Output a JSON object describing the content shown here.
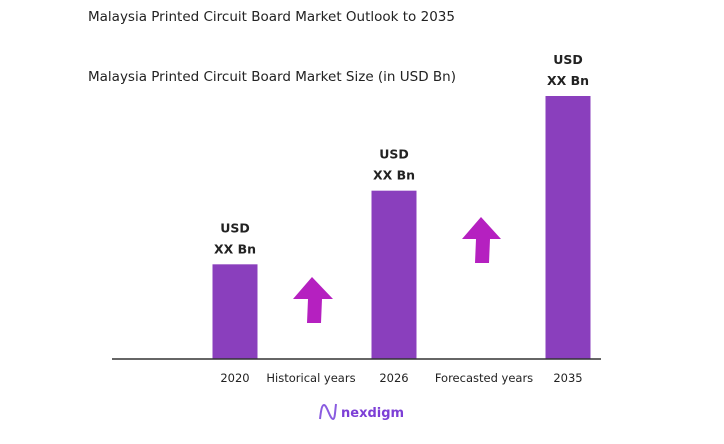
{
  "chart_data": {
    "type": "bar",
    "title": "Malaysia Printed Circuit Board Market Outlook to 2035",
    "subtitle": "Malaysia Printed Circuit Board Market Size (in USD Bn)",
    "categories": [
      "2020",
      "2026",
      "2035"
    ],
    "values": [
      0.36,
      0.64,
      1.0
    ],
    "data_labels": [
      {
        "line1": "USD",
        "line2": "XX Bn"
      },
      {
        "line1": "USD",
        "line2": "XX Bn"
      },
      {
        "line1": "USD",
        "line2": "XX Bn"
      }
    ],
    "period_labels": [
      "Historical years",
      "Forecasted years"
    ],
    "ylim": [
      0,
      1.0
    ],
    "grid": false,
    "bar_color": "#8a3fbd",
    "arrow_color": "#b520c0"
  },
  "logo": {
    "text": "nexdigm",
    "color": "#7d3fd6"
  }
}
